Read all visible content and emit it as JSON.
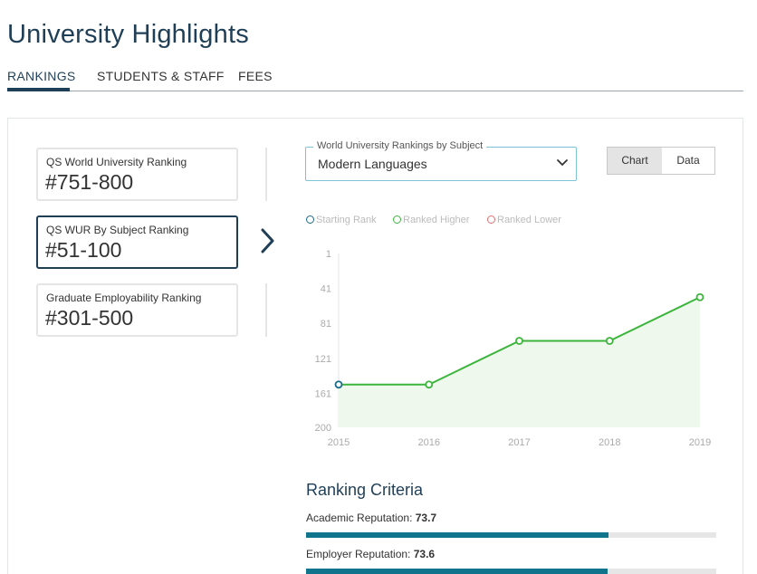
{
  "page": {
    "title": "University Highlights"
  },
  "tabs": [
    {
      "label": "RANKINGS",
      "active": true
    },
    {
      "label": "STUDENTS & STAFF",
      "active": false
    },
    {
      "label": "FEES",
      "active": false
    }
  ],
  "rankings": [
    {
      "label": "QS World University Ranking",
      "value": "#751-800",
      "active": false
    },
    {
      "label": "QS WUR By Subject Ranking",
      "value": "#51-100",
      "active": true
    },
    {
      "label": "Graduate Employability Ranking",
      "value": "#301-500",
      "active": false
    }
  ],
  "subject_select": {
    "legend": "World University Rankings by Subject",
    "selected": "Modern Languages"
  },
  "view_toggle": {
    "chart_label": "Chart",
    "data_label": "Data",
    "active": "Chart"
  },
  "legend": [
    {
      "label": "Starting Rank",
      "color": "#1a6a8a"
    },
    {
      "label": "Ranked Higher",
      "color": "#3cb53c"
    },
    {
      "label": "Ranked Lower",
      "color": "#e07070"
    }
  ],
  "chart_data": {
    "type": "area",
    "x": [
      "2015",
      "2016",
      "2017",
      "2018",
      "2019"
    ],
    "y": [
      151,
      151,
      101,
      101,
      51
    ],
    "y_axis_reversed": true,
    "ylim": [
      1,
      200
    ],
    "y_ticks": [
      "1",
      "41",
      "81",
      "121",
      "161",
      "200"
    ],
    "line_color": "#3cb53c",
    "fill_color": "#eef8ec",
    "start_point_color": "#1a6a8a",
    "xlabel": "",
    "ylabel": ""
  },
  "criteria": {
    "title": "Ranking Criteria",
    "items": [
      {
        "name": "Academic Reputation:",
        "score": "73.7",
        "value": 73.7
      },
      {
        "name": "Employer Reputation:",
        "score": "73.6",
        "value": 73.6
      }
    ]
  }
}
